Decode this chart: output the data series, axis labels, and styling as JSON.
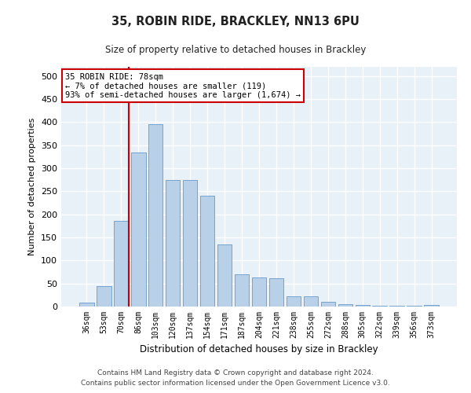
{
  "title1": "35, ROBIN RIDE, BRACKLEY, NN13 6PU",
  "title2": "Size of property relative to detached houses in Brackley",
  "xlabel": "Distribution of detached houses by size in Brackley",
  "ylabel": "Number of detached properties",
  "categories": [
    "36sqm",
    "53sqm",
    "70sqm",
    "86sqm",
    "103sqm",
    "120sqm",
    "137sqm",
    "154sqm",
    "171sqm",
    "187sqm",
    "204sqm",
    "221sqm",
    "238sqm",
    "255sqm",
    "272sqm",
    "288sqm",
    "305sqm",
    "322sqm",
    "339sqm",
    "356sqm",
    "373sqm"
  ],
  "values": [
    8,
    45,
    185,
    335,
    395,
    275,
    275,
    240,
    135,
    70,
    63,
    62,
    23,
    23,
    10,
    5,
    3,
    2,
    1,
    1,
    3
  ],
  "bar_color": "#b8d0e8",
  "bar_edge_color": "#6699cc",
  "vline_color": "#cc0000",
  "annotation_text": "35 ROBIN RIDE: 78sqm\n← 7% of detached houses are smaller (119)\n93% of semi-detached houses are larger (1,674) →",
  "annotation_box_color": "#ffffff",
  "annotation_box_edge": "#cc0000",
  "ylim": [
    0,
    520
  ],
  "yticks": [
    0,
    50,
    100,
    150,
    200,
    250,
    300,
    350,
    400,
    450,
    500
  ],
  "background_color": "#e8f0f8",
  "footer1": "Contains HM Land Registry data © Crown copyright and database right 2024.",
  "footer2": "Contains public sector information licensed under the Open Government Licence v3.0."
}
